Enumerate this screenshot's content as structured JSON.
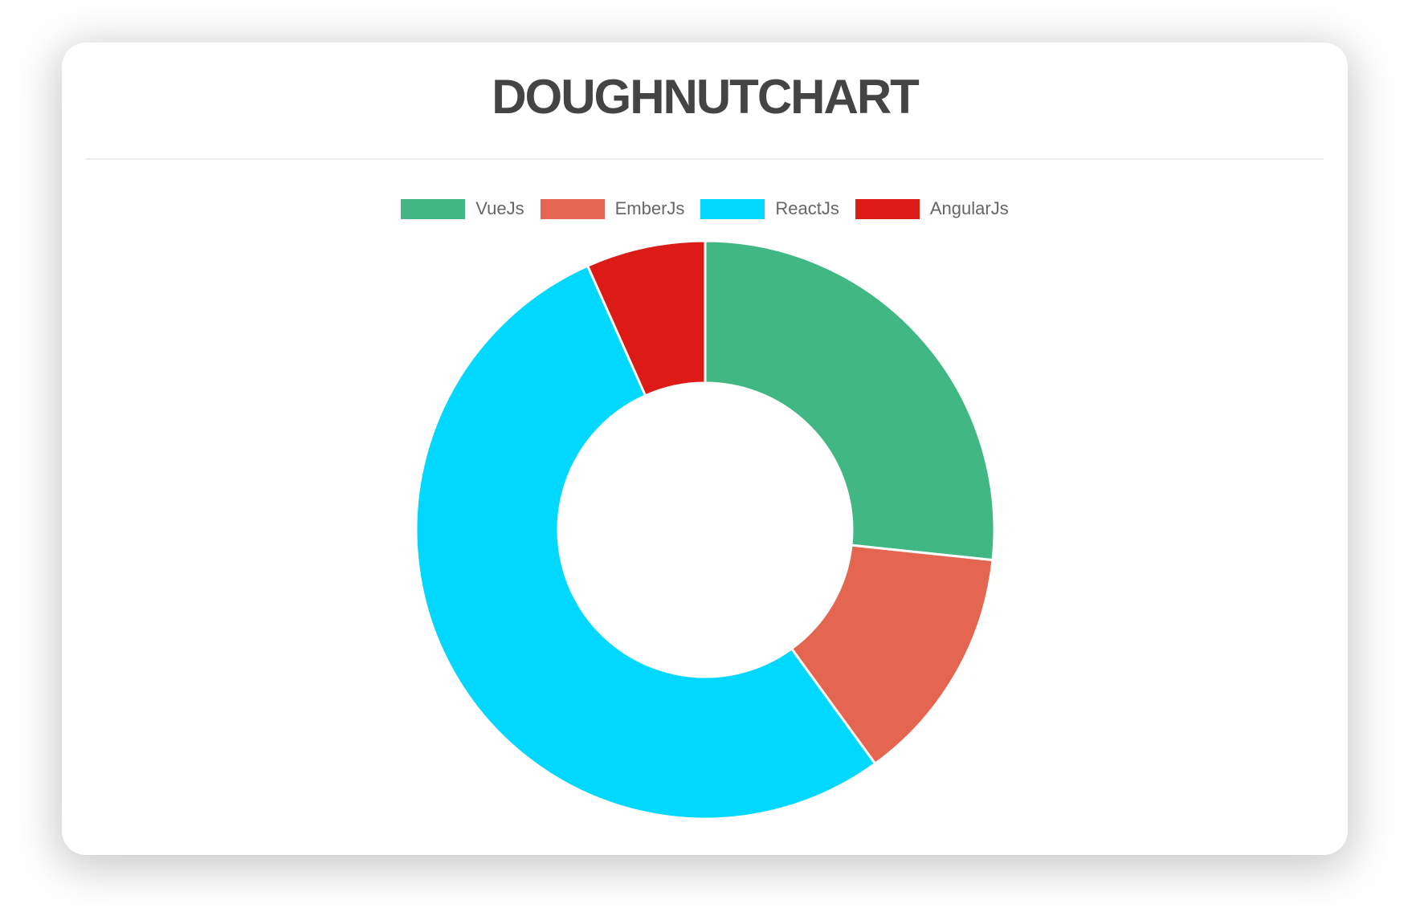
{
  "card": {
    "title": "DOUGHNUTCHART"
  },
  "colors": {
    "title_text": "#444444",
    "legend_text": "#666666",
    "divider": "#ededed",
    "card_background": "#ffffff",
    "slice_border": "#ffffff"
  },
  "chart_data": {
    "type": "doughnut",
    "title": "DOUGHNUTCHART",
    "labels": [
      "VueJs",
      "EmberJs",
      "ReactJs",
      "AngularJs"
    ],
    "values": [
      40,
      20,
      80,
      10
    ],
    "colors": [
      "#41B883",
      "#E46651",
      "#00D8FF",
      "#DD1B16"
    ],
    "legend_position": "top",
    "start_at_top": true,
    "clockwise": true,
    "cutout_percent": 50,
    "border_width": 3
  }
}
